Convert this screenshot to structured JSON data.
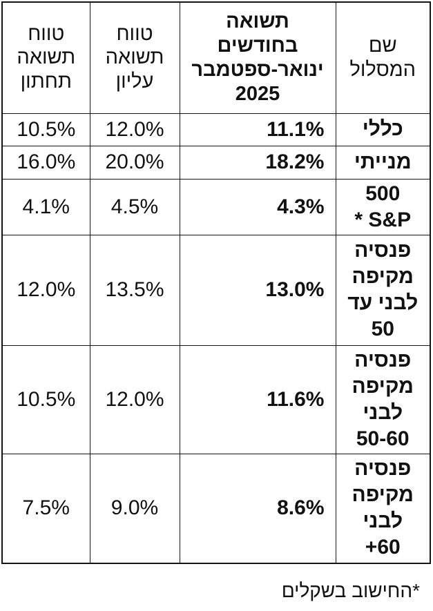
{
  "chart_data": {
    "type": "table",
    "title": "",
    "columns": [
      "שם המסלול",
      "תשואה בחודשים ינואר-ספטמבר 2025",
      "טווח תשואה עליון",
      "טווח תשואה תחתון"
    ],
    "rows": [
      [
        "כללי",
        "11.1%",
        "12.0%",
        "10.5%"
      ],
      [
        "מנייתי",
        "18.2%",
        "20.0%",
        "16.0%"
      ],
      [
        "S&P 500 *",
        "4.3%",
        "4.5%",
        "4.1%"
      ],
      [
        "פנסיה מקיפה לבני עד 50",
        "13.0%",
        "13.5%",
        "12.0%"
      ],
      [
        "פנסיה מקיפה לבני 50-60",
        "11.6%",
        "12.0%",
        "10.5%"
      ],
      [
        "פנסיה מקיפה לבני 60+",
        "8.6%",
        "9.0%",
        "7.5%"
      ]
    ],
    "footnote": "*החישוב בשקלים"
  },
  "table": {
    "headers": {
      "name": "שם\nהמסלול",
      "return_title": "תשואה\nבחודשים\nינואר-ספטמבר",
      "return_year": "2025",
      "upper": "טווח\nתשואה\nעליון",
      "lower": "טווח\nתשואה\nתחתון"
    },
    "rows": [
      {
        "name": "כללי",
        "return": "11.1%",
        "upper": "12.0%",
        "lower": "10.5%"
      },
      {
        "name": "מנייתי",
        "return": "18.2%",
        "upper": "20.0%",
        "lower": "16.0%"
      },
      {
        "name": "500\nS&P *",
        "return": "4.3%",
        "upper": "4.5%",
        "lower": "4.1%"
      },
      {
        "name": "פנסיה\nמקיפה\nלבני עד\n50",
        "return": "13.0%",
        "upper": "13.5%",
        "lower": "12.0%"
      },
      {
        "name": "פנסיה\nמקיפה\nלבני\n50-60",
        "return": "11.6%",
        "upper": "12.0%",
        "lower": "10.5%"
      },
      {
        "name": "פנסיה\nמקיפה\nלבני\n60+",
        "return": "8.6%",
        "upper": "9.0%",
        "lower": "7.5%"
      }
    ]
  },
  "footnote": "*החישוב בשקלים",
  "colors": {
    "text": "#111111",
    "border": "#141414",
    "background": "#ffffff"
  }
}
